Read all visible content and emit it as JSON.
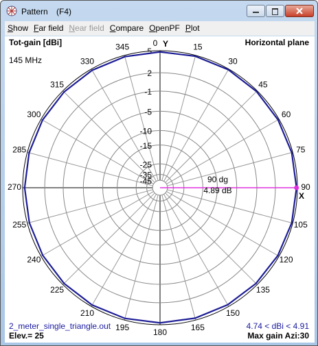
{
  "window": {
    "title": "Pattern",
    "shortcut": "(F4)"
  },
  "menu": [
    "Show",
    "Far field",
    "Near field",
    "Compare",
    "OpenPF",
    "Plot"
  ],
  "chart_data": {
    "type": "polar",
    "title": "Tot-gain [dBi]",
    "subtitle": "Horizontal plane",
    "frequency": "145 MHz",
    "y_axis_label": "Y",
    "x_axis_label": "X",
    "rticks": [
      5,
      2,
      -1,
      -5,
      -10,
      -15,
      -25,
      -35,
      -45
    ],
    "thetaticks": [
      0,
      15,
      30,
      45,
      60,
      75,
      90,
      105,
      120,
      135,
      150,
      165,
      180,
      195,
      210,
      225,
      240,
      255,
      270,
      285,
      300,
      315,
      330,
      345
    ],
    "series": [
      {
        "color": "#1c1c96",
        "x": [
          0,
          15,
          30,
          45,
          60,
          75,
          90,
          105,
          120,
          135,
          150,
          165,
          180,
          195,
          210,
          225,
          240,
          255,
          270,
          285,
          300,
          315,
          330,
          345
        ],
        "values": [
          4.85,
          4.89,
          4.91,
          4.89,
          4.86,
          4.87,
          4.89,
          4.87,
          4.83,
          4.79,
          4.76,
          4.75,
          4.76,
          4.78,
          4.8,
          4.79,
          4.76,
          4.74,
          4.75,
          4.77,
          4.79,
          4.8,
          4.82,
          4.83
        ]
      }
    ],
    "cursor": {
      "azimuth": 90,
      "azimuth_label": "90 dg",
      "gain": 4.89,
      "gain_label": "4.89 dB",
      "color": "#e030e0"
    },
    "file": "2_meter_single_triangle.out",
    "elevation": "Elev.= 25",
    "range_label": "4.74 < dBi < 4.91",
    "max_gain": "Max gain Azi:30"
  }
}
